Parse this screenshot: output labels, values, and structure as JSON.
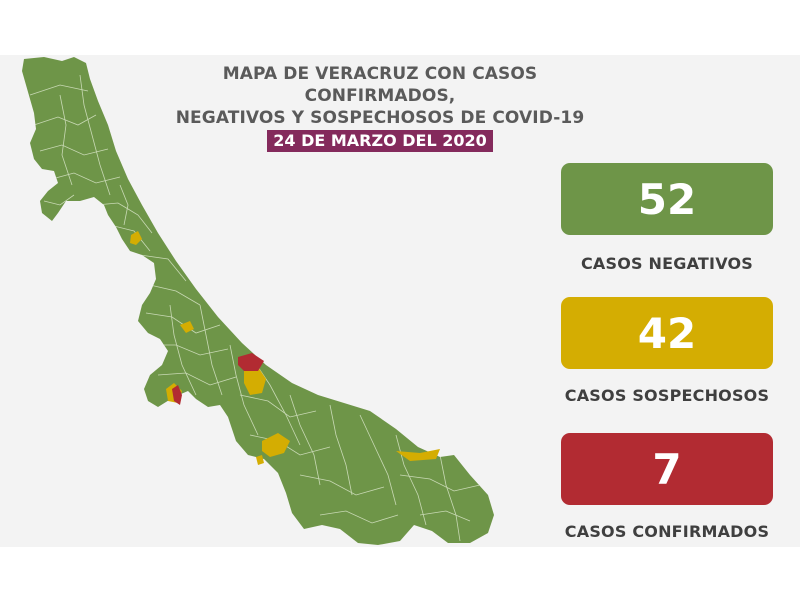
{
  "title": {
    "line1": "MAPA DE VERACRUZ CON CASOS CONFIRMADOS,",
    "line2": "NEGATIVOS Y SOSPECHOSOS DE COVID-19",
    "date": "24 DE MARZO DEL 2020"
  },
  "stats": [
    {
      "id": "negativos",
      "value": "52",
      "label": "CASOS NEGATIVOS",
      "color": "#6e9548"
    },
    {
      "id": "sospechosos",
      "value": "42",
      "label": "CASOS SOSPECHOSOS",
      "color": "#d4ad02"
    },
    {
      "id": "confirmados",
      "value": "7",
      "label": "CASOS CONFIRMADOS",
      "color": "#b22b32"
    }
  ],
  "map": {
    "state_color": "#6e9548",
    "border_color": "#d9e5c8",
    "suspected_color": "#d4ad02",
    "confirmed_color": "#b22b32",
    "background": "#f3f3f3"
  }
}
